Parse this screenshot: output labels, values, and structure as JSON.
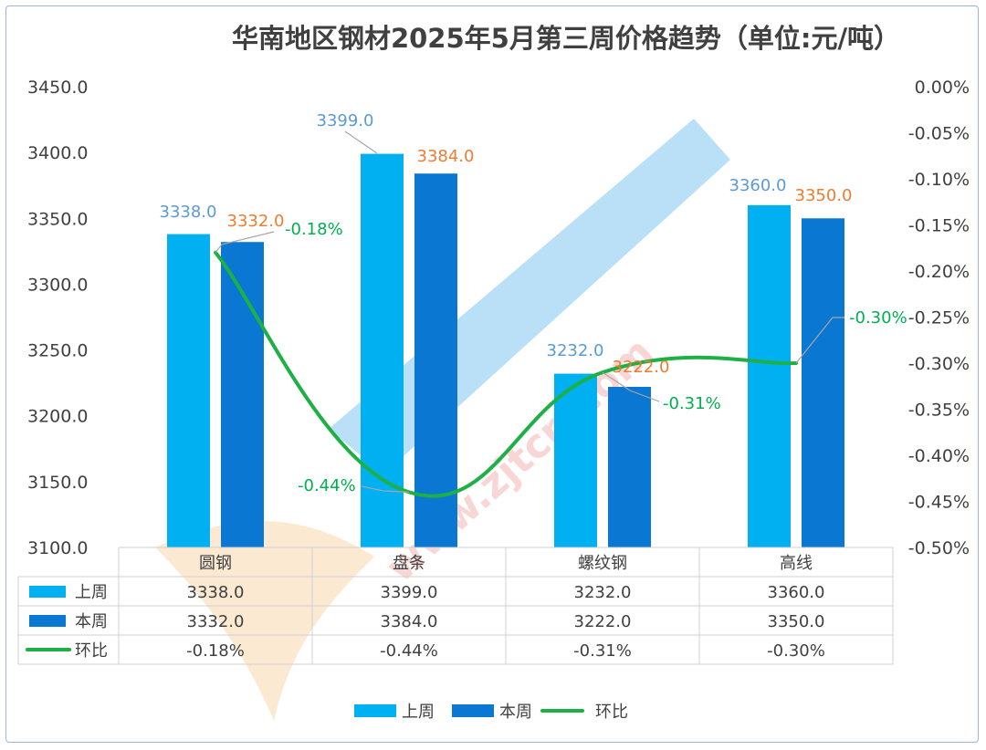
{
  "chart_data": {
    "type": "bar",
    "title": "华南地区钢材2025年5月第三周价格趋势（单位:元/吨）",
    "categories": [
      "圆钢",
      "盘条",
      "螺纹钢",
      "高线"
    ],
    "series": [
      {
        "name": "上周",
        "values": [
          3338.0,
          3399.0,
          3232.0,
          3360.0
        ],
        "color": "#00b0f0",
        "labels": [
          "3338.0",
          "3399.0",
          "3232.0",
          "3360.0"
        ]
      },
      {
        "name": "本周",
        "values": [
          3332.0,
          3384.0,
          3222.0,
          3350.0
        ],
        "color": "#0a78d2",
        "labels": [
          "3332.0",
          "3384.0",
          "3222.0",
          "3350.0"
        ]
      },
      {
        "name": "环比",
        "type": "line",
        "axis": "right",
        "values": [
          -0.18,
          -0.44,
          -0.31,
          -0.3
        ],
        "color": "#1db044",
        "labels": [
          "-0.18%",
          "-0.44%",
          "-0.31%",
          "-0.30%"
        ]
      }
    ],
    "ylim": [
      3100,
      3450
    ],
    "yticks": [
      "3450.0",
      "3400.0",
      "3350.0",
      "3300.0",
      "3250.0",
      "3200.0",
      "3150.0",
      "3100.0"
    ],
    "y2lim": [
      -0.5,
      0
    ],
    "y2ticks": [
      "0.00%",
      "-0.05%",
      "-0.10%",
      "-0.15%",
      "-0.20%",
      "-0.25%",
      "-0.30%",
      "-0.35%",
      "-0.40%",
      "-0.45%",
      "-0.50%"
    ],
    "table": {
      "rows": [
        {
          "name": "上周",
          "cells": [
            "3338.0",
            "3399.0",
            "3232.0",
            "3360.0"
          ]
        },
        {
          "name": "本周",
          "cells": [
            "3332.0",
            "3384.0",
            "3222.0",
            "3350.0"
          ]
        },
        {
          "name": "环比",
          "cells": [
            "-0.18%",
            "-0.44%",
            "-0.31%",
            "-0.30%"
          ]
        }
      ]
    },
    "legend": {
      "position": "bottom",
      "items": [
        "上周",
        "本周",
        "环比"
      ]
    },
    "grid": false
  },
  "watermark": {
    "text": "www.zjtcn.com"
  }
}
